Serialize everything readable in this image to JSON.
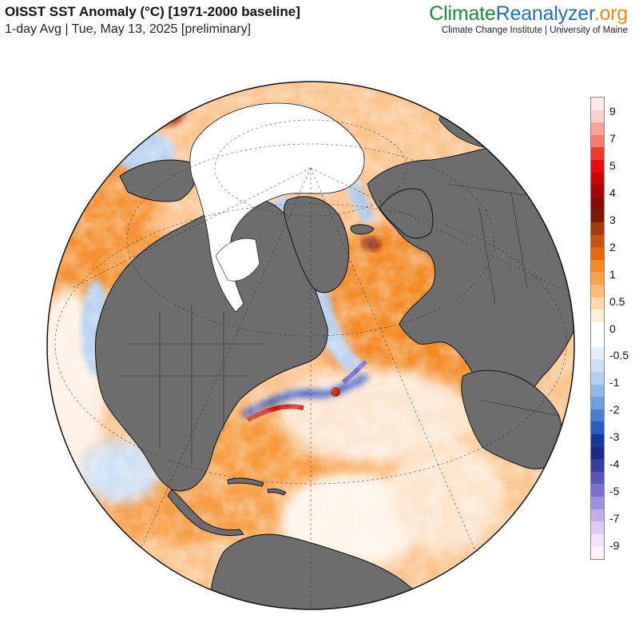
{
  "header": {
    "title": "OISST SST Anomaly (°C) [1971-2000 baseline]",
    "subtitle": "1-day Avg | Tue, May 13, 2025 [preliminary]"
  },
  "brand": {
    "part1": "Climate",
    "part2": "Reanalyzer",
    "part3": ".org",
    "tagline": "Climate Change Institute | University of Maine",
    "colors": {
      "climate": "#1b8a3b",
      "reanalyzer": "#2071b8",
      "org": "#f08a1c"
    }
  },
  "map": {
    "projection": "orthographic",
    "land_color": "#6d6d6d",
    "sea_ice_color": "#ffffff"
  },
  "colorbar": {
    "labels": [
      "9",
      "7",
      "5",
      "4",
      "3",
      "2",
      "1",
      "0.5",
      "0",
      "-0.5",
      "-1",
      "-2",
      "-3",
      "-4",
      "-5",
      "-7",
      "-9"
    ],
    "colors": [
      "#fde9e9",
      "#fcd0c8",
      "#f9a59a",
      "#f57a6e",
      "#ef3a2a",
      "#e80c0c",
      "#c40808",
      "#a80606",
      "#8a0a06",
      "#7a1a04",
      "#a33d0a",
      "#c95312",
      "#e6680d",
      "#f58a1f",
      "#fba14a",
      "#fdbc78",
      "#fdd6ab",
      "#feeede",
      "#ffffff",
      "#ffffff",
      "#e6eef9",
      "#cfdff5",
      "#b4cff0",
      "#93b9e9",
      "#6f9fdd",
      "#4a7ed0",
      "#2a5cbe",
      "#123a9a",
      "#1c2a8a",
      "#3a3ca0",
      "#5a56b8",
      "#7a70cc",
      "#9d8fdb",
      "#c0aee8",
      "#dccbf2",
      "#f1e3f8",
      "#fbf2fa"
    ]
  }
}
